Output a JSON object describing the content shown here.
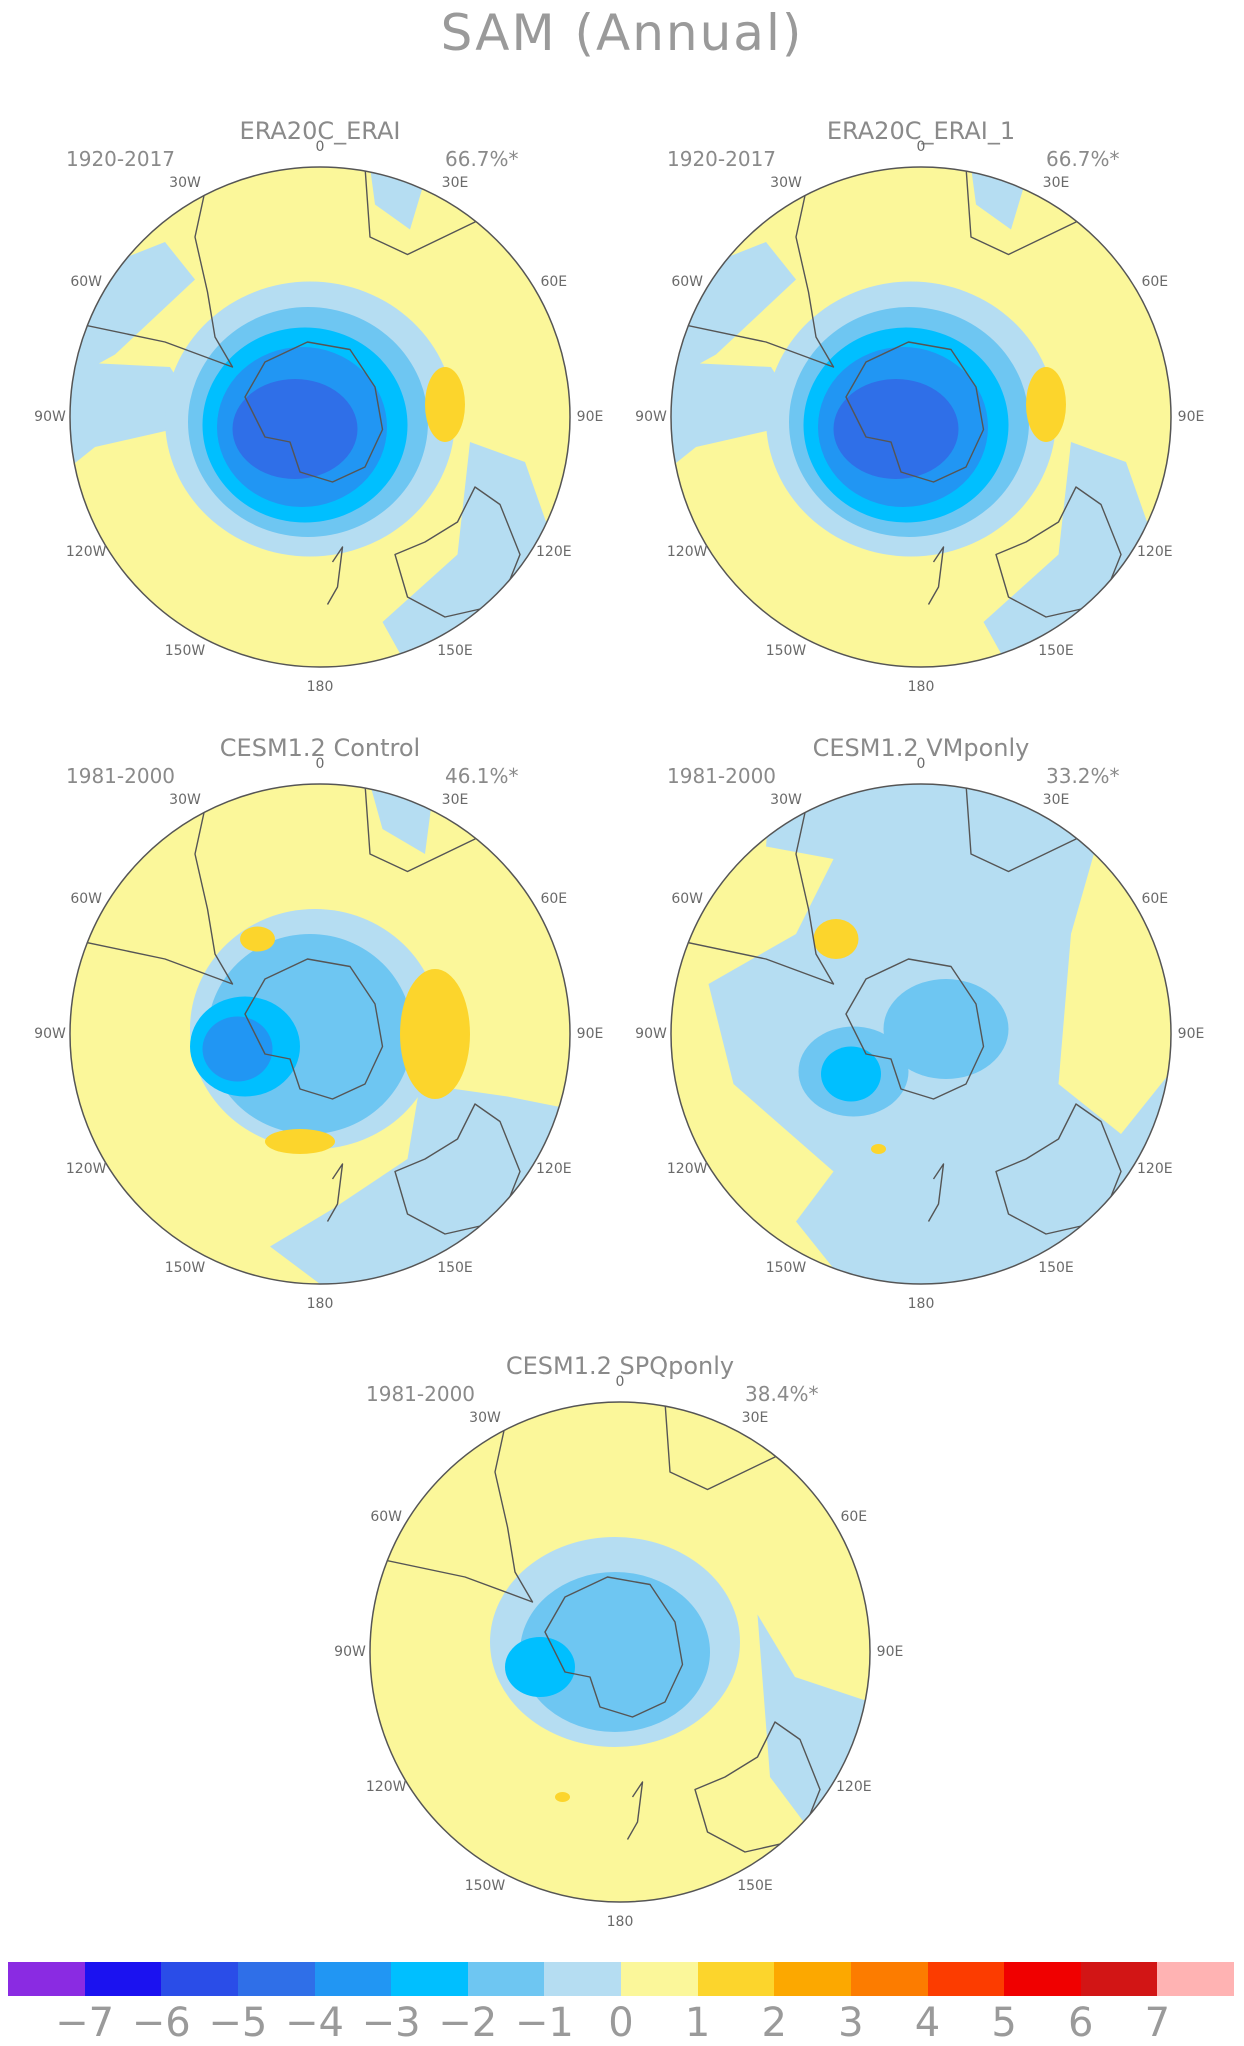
{
  "figure": {
    "title": "SAM (Annual)"
  },
  "panels": [
    {
      "id": "era20c_erai",
      "title": "ERA20C_ERAI",
      "period": "1920-2017",
      "variance": "66.7%*",
      "pattern": "reanalysis"
    },
    {
      "id": "era20c_erai_1",
      "title": "ERA20C_ERAI_1",
      "period": "1920-2017",
      "variance": "66.7%*",
      "pattern": "reanalysis"
    },
    {
      "id": "cesm_control",
      "title": "CESM1.2 Control",
      "period": "1981-2000",
      "variance": "46.1%*",
      "pattern": "control"
    },
    {
      "id": "cesm_vmponly",
      "title": "CESM1.2 VMponly",
      "period": "1981-2000",
      "variance": "33.2%*",
      "pattern": "vmponly"
    },
    {
      "id": "cesm_spqponly",
      "title": "CESM1.2 SPQponly",
      "period": "1981-2000",
      "variance": "38.4%*",
      "pattern": "spqponly"
    }
  ],
  "longitude_labels": [
    "0",
    "30E",
    "60E",
    "90E",
    "120E",
    "150E",
    "180",
    "150W",
    "120W",
    "90W",
    "60W",
    "30W"
  ],
  "colorbar": {
    "colors": [
      "#8a2be2",
      "#1b12f0",
      "#2a4de8",
      "#2f6fe8",
      "#2196f3",
      "#00bfff",
      "#6ec6f2",
      "#b5ddf2",
      "#fbf79a",
      "#fcd52c",
      "#fca800",
      "#fc7c00",
      "#fc3c00",
      "#f00000",
      "#d21515",
      "#ffb3b3"
    ],
    "tick_labels": [
      "-7",
      "-6",
      "-5",
      "-4",
      "-3",
      "-2",
      "-1",
      "0",
      "1",
      "2",
      "3",
      "4",
      "5",
      "6",
      "7"
    ]
  }
}
